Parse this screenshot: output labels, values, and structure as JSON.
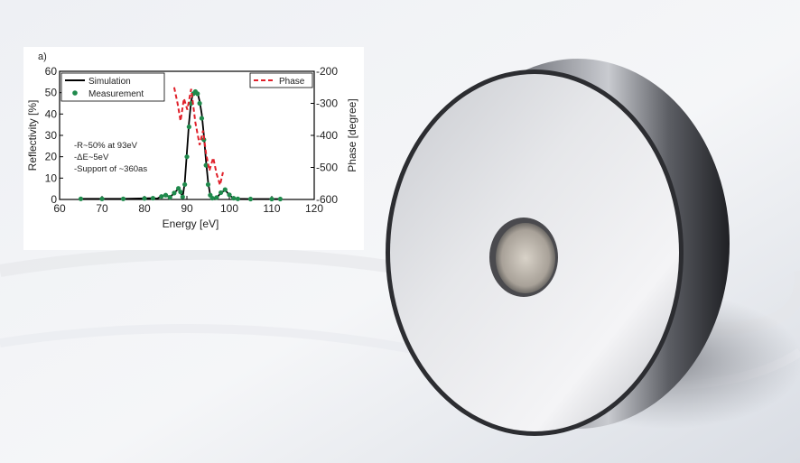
{
  "chart_data": {
    "type": "line",
    "panel_label": "a)",
    "title": "",
    "xlabel": "Energy [eV]",
    "ylabel_left": "Reflectivity [%]",
    "ylabel_right": "Phase [degree]",
    "xlim": [
      60,
      120
    ],
    "ylim_left": [
      0,
      60
    ],
    "ylim_right": [
      -600,
      -200
    ],
    "x_ticks": [
      60,
      70,
      80,
      90,
      100,
      110,
      120
    ],
    "y_ticks_left": [
      0,
      10,
      20,
      30,
      40,
      50,
      60
    ],
    "y_ticks_right": [
      -200,
      -300,
      -400,
      -500,
      -600
    ],
    "grid": false,
    "annotations": [
      "-R~50% at 93eV",
      "-ΔE~5eV",
      "-Support of ~360as"
    ],
    "legend_left": [
      {
        "label": "Simulation",
        "style": "solid",
        "color": "#000000"
      },
      {
        "label": "Measurement",
        "style": "dots",
        "color": "#1f8a4c"
      }
    ],
    "legend_right": [
      {
        "label": "Phase",
        "style": "dashed",
        "color": "#e0202a"
      }
    ],
    "series": [
      {
        "name": "Simulation",
        "axis": "left",
        "color": "#000000",
        "x": [
          65,
          70,
          75,
          80,
          82,
          83,
          84,
          85,
          86,
          87,
          88,
          88.5,
          89,
          89.5,
          90,
          90.5,
          91,
          91.5,
          92,
          92.5,
          93,
          93.5,
          94,
          94.5,
          95,
          95.5,
          96,
          97,
          98,
          99,
          100,
          101,
          102,
          105,
          110,
          112
        ],
        "values": [
          0.3,
          0.3,
          0.3,
          0.5,
          0.6,
          0.4,
          1.5,
          2.2,
          1.0,
          3.0,
          5.0,
          3.5,
          1.0,
          8.0,
          22.0,
          36.0,
          46.0,
          50.0,
          51.0,
          50.0,
          46.0,
          40.0,
          30.0,
          18.0,
          8.0,
          2.0,
          0.5,
          0.8,
          3.0,
          4.5,
          2.0,
          0.5,
          0.3,
          0.2,
          0.2,
          0.2
        ]
      },
      {
        "name": "Measurement",
        "axis": "left",
        "color": "#1f8a4c",
        "x": [
          65,
          70,
          75,
          80,
          82,
          84,
          85,
          86,
          87,
          88,
          88.5,
          89,
          89.5,
          90,
          90.5,
          91,
          91.5,
          92,
          92.5,
          93,
          93.5,
          94,
          94.5,
          95,
          95.5,
          96,
          97,
          98,
          99,
          100,
          101,
          102,
          105,
          110,
          112
        ],
        "values": [
          0.3,
          0.3,
          0.3,
          0.5,
          0.6,
          1.4,
          2.0,
          1.0,
          3.0,
          5.2,
          3.5,
          1.2,
          7.0,
          20.0,
          34.0,
          45.0,
          49.5,
          50.5,
          49.5,
          45.0,
          38.0,
          28.0,
          16.0,
          7.0,
          2.0,
          0.6,
          0.9,
          3.2,
          4.6,
          2.2,
          0.6,
          0.3,
          0.2,
          0.2,
          0.2
        ]
      },
      {
        "name": "Phase",
        "axis": "right",
        "color": "#e0202a",
        "x": [
          87,
          87.8,
          88.5,
          89.3,
          90.1,
          91,
          92,
          93,
          93.8,
          94.5,
          95.3,
          96.2,
          97,
          97.8,
          98.5
        ],
        "values": [
          -250,
          -300,
          -355,
          -285,
          -320,
          -255,
          -360,
          -430,
          -385,
          -455,
          -510,
          -470,
          -520,
          -555,
          -515
        ]
      }
    ]
  }
}
